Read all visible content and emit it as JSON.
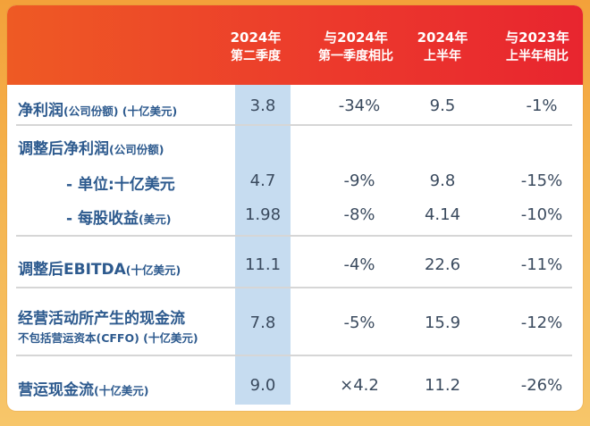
{
  "header": {
    "col1": [
      "2024年",
      "第二季度"
    ],
    "col2": [
      "与2024年",
      "第一季度相比"
    ],
    "col3": [
      "2024年",
      "上半年"
    ],
    "col4": [
      "与2023年",
      "上半年相比"
    ]
  },
  "rows": [
    {
      "label": "净利润",
      "unit": "(公司份额) (十亿美元)",
      "values": [
        "3.8",
        "-34%",
        "9.5",
        "-1%"
      ]
    },
    {
      "label": "调整后净利润",
      "unit": "(公司份额)"
    },
    {
      "label": "- 单位:十亿美元",
      "values": [
        "4.7",
        "-9%",
        "9.8",
        "-15%"
      ]
    },
    {
      "label": "- 每股收益",
      "unit": "(美元)",
      "values": [
        "1.98",
        "-8%",
        "4.14",
        "-10%"
      ]
    },
    {
      "label": "调整后EBITDA",
      "unit": "(十亿美元)",
      "values": [
        "11.1",
        "-4%",
        "22.6",
        "-11%"
      ]
    },
    {
      "label": "经营活动所产生的现金流",
      "unit": "不包括营运资本(CFFO) (十亿美元)",
      "values": [
        "7.8",
        "-5%",
        "15.9",
        "-12%"
      ]
    },
    {
      "label": "营运现金流",
      "unit": "(十亿美元)",
      "values": [
        "9.0",
        "×4.2",
        "11.2",
        "-26%"
      ]
    }
  ]
}
